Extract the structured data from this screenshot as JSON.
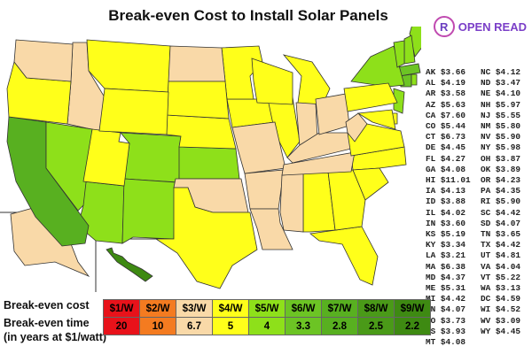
{
  "title": "Break-even Cost to Install Solar Panels",
  "logo": {
    "mark": "R",
    "text": "OPEN READ",
    "color": "#7b3fc8"
  },
  "states": [
    {
      "code": "AK",
      "cost": "$3.66"
    },
    {
      "code": "AL",
      "cost": "$4.19"
    },
    {
      "code": "AR",
      "cost": "$3.58"
    },
    {
      "code": "AZ",
      "cost": "$5.63"
    },
    {
      "code": "CA",
      "cost": "$7.60"
    },
    {
      "code": "CO",
      "cost": "$5.44"
    },
    {
      "code": "CT",
      "cost": "$6.73"
    },
    {
      "code": "DE",
      "cost": "$4.45"
    },
    {
      "code": "FL",
      "cost": "$4.27"
    },
    {
      "code": "GA",
      "cost": "$4.08"
    },
    {
      "code": "HI",
      "cost": "$11.01"
    },
    {
      "code": "IA",
      "cost": "$4.13"
    },
    {
      "code": "ID",
      "cost": "$3.88"
    },
    {
      "code": "IL",
      "cost": "$4.02"
    },
    {
      "code": "IN",
      "cost": "$3.60"
    },
    {
      "code": "KS",
      "cost": "$5.19"
    },
    {
      "code": "KY",
      "cost": "$3.34"
    },
    {
      "code": "LA",
      "cost": "$3.21"
    },
    {
      "code": "MA",
      "cost": "$6.38"
    },
    {
      "code": "MD",
      "cost": "$4.37"
    },
    {
      "code": "ME",
      "cost": "$5.31"
    },
    {
      "code": "MI",
      "cost": "$4.42"
    },
    {
      "code": "MN",
      "cost": "$4.07"
    },
    {
      "code": "MO",
      "cost": "$3.73"
    },
    {
      "code": "MS",
      "cost": "$3.93"
    },
    {
      "code": "MT",
      "cost": "$4.08"
    },
    {
      "code": "NC",
      "cost": "$4.12"
    },
    {
      "code": "ND",
      "cost": "$3.47"
    },
    {
      "code": "NE",
      "cost": "$4.10"
    },
    {
      "code": "NH",
      "cost": "$5.97"
    },
    {
      "code": "NJ",
      "cost": "$5.55"
    },
    {
      "code": "NM",
      "cost": "$5.80"
    },
    {
      "code": "NV",
      "cost": "$5.90"
    },
    {
      "code": "NY",
      "cost": "$5.98"
    },
    {
      "code": "OH",
      "cost": "$3.87"
    },
    {
      "code": "OK",
      "cost": "$3.89"
    },
    {
      "code": "OR",
      "cost": "$4.23"
    },
    {
      "code": "PA",
      "cost": "$4.35"
    },
    {
      "code": "RI",
      "cost": "$5.90"
    },
    {
      "code": "SC",
      "cost": "$4.42"
    },
    {
      "code": "SD",
      "cost": "$4.07"
    },
    {
      "code": "TN",
      "cost": "$3.65"
    },
    {
      "code": "TX",
      "cost": "$4.42"
    },
    {
      "code": "UT",
      "cost": "$4.81"
    },
    {
      "code": "VA",
      "cost": "$4.04"
    },
    {
      "code": "VT",
      "cost": "$5.22"
    },
    {
      "code": "WA",
      "cost": "$3.13"
    },
    {
      "code": "DC",
      "cost": "$4.59"
    },
    {
      "code": "WI",
      "cost": "$4.52"
    },
    {
      "code": "WV",
      "cost": "$3.09"
    },
    {
      "code": "WY",
      "cost": "$4.45"
    }
  ],
  "legend": {
    "cost_label": "Break-even cost",
    "time_label": "Break-even time",
    "time_sublabel": "(in years at $1/watt)",
    "items": [
      {
        "cost": "$1/W",
        "years": "20",
        "color": "#e8121a"
      },
      {
        "cost": "$2/W",
        "years": "10",
        "color": "#f47b20"
      },
      {
        "cost": "$3/W",
        "years": "6.7",
        "color": "#f9d9a8"
      },
      {
        "cost": "$4/W",
        "years": "5",
        "color": "#ffff1a"
      },
      {
        "cost": "$5/W",
        "years": "4",
        "color": "#8ee01a"
      },
      {
        "cost": "$6/W",
        "years": "3.3",
        "color": "#6cc424"
      },
      {
        "cost": "$7/W",
        "years": "2.8",
        "color": "#58b020"
      },
      {
        "cost": "$8/W",
        "years": "2.5",
        "color": "#4a9a18"
      },
      {
        "cost": "$9/W",
        "years": "2.2",
        "color": "#3e8a12"
      }
    ]
  }
}
